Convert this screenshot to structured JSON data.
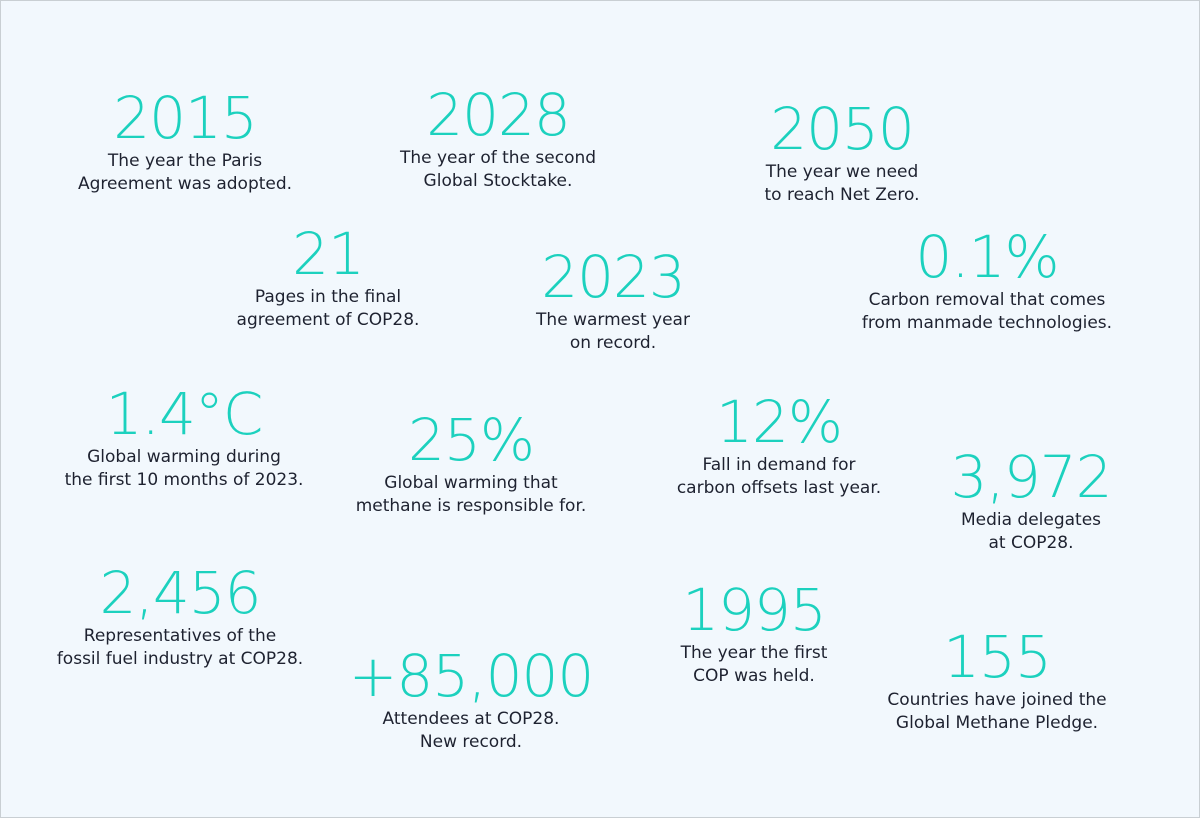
{
  "style": {
    "background": "#f2f8fd",
    "accent": "#1cd1be",
    "text": "#1e2230"
  },
  "stats": [
    {
      "value": "2015",
      "line1": "The year the Paris",
      "line2": "Agreement was adopted."
    },
    {
      "value": "2028",
      "line1": "The year of the second",
      "line2": "Global Stocktake."
    },
    {
      "value": "2050",
      "line1": "The year we need",
      "line2": "to reach Net Zero."
    },
    {
      "value": "21",
      "line1": "Pages in the final",
      "line2": "agreement of COP28."
    },
    {
      "value": "2023",
      "line1": "The warmest year",
      "line2": "on record."
    },
    {
      "value": "0.1%",
      "line1": "Carbon removal that comes",
      "line2": "from manmade technologies."
    },
    {
      "value": "1.4°C",
      "line1": "Global warming during",
      "line2": "the first 10 months of 2023."
    },
    {
      "value": "25%",
      "line1": "Global warming that",
      "line2": "methane is responsible for."
    },
    {
      "value": "12%",
      "line1": "Fall in demand for",
      "line2": "carbon offsets last year."
    },
    {
      "value": "3,972",
      "line1": "Media delegates",
      "line2": "at COP28."
    },
    {
      "value": "2,456",
      "line1": "Representatives of the",
      "line2": "fossil fuel industry at COP28."
    },
    {
      "value": "+85,000",
      "line1": "Attendees at COP28.",
      "line2": "New record."
    },
    {
      "value": "1995",
      "line1": "The year the first",
      "line2": "COP was held."
    },
    {
      "value": "155",
      "line1": "Countries have joined the",
      "line2": "Global Methane Pledge."
    }
  ]
}
